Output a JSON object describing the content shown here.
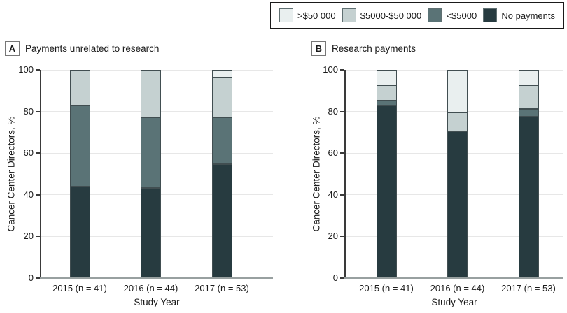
{
  "figure": {
    "panels": [
      {
        "letter": "A",
        "title": "Payments unrelated to research"
      },
      {
        "letter": "B",
        "title": "Research payments"
      }
    ]
  },
  "legend": {
    "items": [
      {
        "label": ">$50 000",
        "color": "#e9efef"
      },
      {
        "label": "$5000-$50 000",
        "color": "#c5d1d1"
      },
      {
        "label": "<$5000",
        "color": "#5a7376"
      },
      {
        "label": "No payments",
        "color": "#273b40"
      }
    ]
  },
  "chart_data": [
    {
      "type": "bar",
      "stacked": true,
      "panel": "A",
      "title": "Payments unrelated to research",
      "categories": [
        "2015 (n = 41)",
        "2016 (n = 44)",
        "2017 (n = 53)"
      ],
      "series": [
        {
          "name": "No payments",
          "values": [
            43.9,
            43.2,
            54.7
          ]
        },
        {
          "name": "<$5000",
          "values": [
            39.0,
            34.1,
            22.6
          ]
        },
        {
          "name": "$5000-$50 000",
          "values": [
            17.1,
            22.7,
            18.9
          ]
        },
        {
          "name": ">$50 000",
          "values": [
            0,
            0,
            3.8
          ]
        }
      ],
      "xlabel": "Study Year",
      "ylabel": "Cancer Center Directors, %",
      "ylim": [
        0,
        100
      ],
      "yticks": [
        0,
        20,
        40,
        60,
        80,
        100
      ],
      "grid": true,
      "legend_position": "top-right"
    },
    {
      "type": "bar",
      "stacked": true,
      "panel": "B",
      "title": "Research payments",
      "categories": [
        "2015 (n = 41)",
        "2016 (n = 44)",
        "2017 (n = 53)"
      ],
      "series": [
        {
          "name": "No payments",
          "values": [
            82.9,
            70.5,
            77.4
          ]
        },
        {
          "name": "<$5000",
          "values": [
            2.4,
            0,
            3.8
          ]
        },
        {
          "name": "$5000-$50 000",
          "values": [
            7.3,
            9.1,
            11.3
          ]
        },
        {
          "name": ">$50 000",
          "values": [
            7.3,
            20.5,
            7.5
          ]
        }
      ],
      "xlabel": "Study Year",
      "ylabel": "Cancer Center Directors, %",
      "ylim": [
        0,
        100
      ],
      "yticks": [
        0,
        20,
        40,
        60,
        80,
        100
      ],
      "grid": true,
      "legend_position": "top-right"
    }
  ]
}
